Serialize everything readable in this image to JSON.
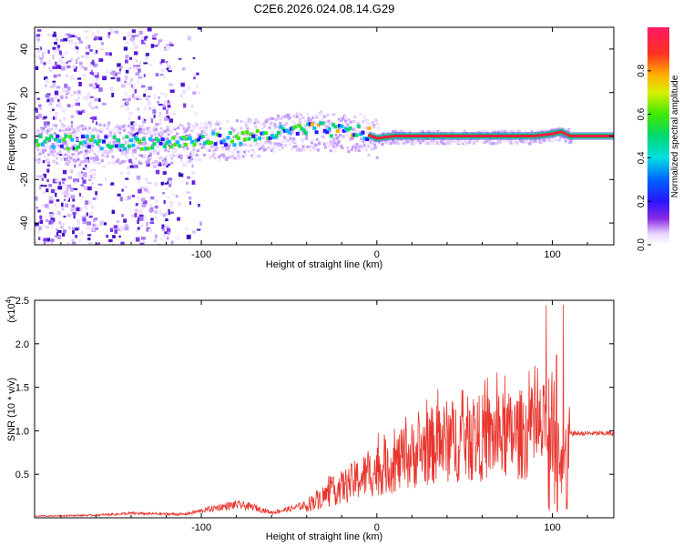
{
  "title": "C2E6.2026.024.08.14.G29",
  "colors": {
    "snr_line": "#e8342c",
    "track_core": "#ff1a44",
    "track_edge": "#00c878",
    "noise": "#6a1ee0"
  },
  "chart_data": [
    {
      "type": "heatmap",
      "title": "C2E6.2026.024.08.14.G29",
      "xlabel": "Height of straight line (km)",
      "ylabel": "Frequency (Hz)",
      "xlim": [
        -195,
        135
      ],
      "ylim": [
        -50,
        50
      ],
      "xticks": [
        "-100",
        "0",
        "100"
      ],
      "yticks": [
        "-40",
        "-20",
        "0",
        "20",
        "40"
      ],
      "colorbar": {
        "label": "Normalized spectral amplitude",
        "range": [
          0.0,
          1.0
        ],
        "ticks": [
          "0.0",
          "0.2",
          "0.4",
          "0.6",
          "0.8"
        ]
      },
      "dominant_track": {
        "x": [
          -195,
          -160,
          -120,
          -80,
          -60,
          -40,
          -30,
          -20,
          -10,
          0,
          10,
          50,
          90,
          100,
          105,
          110,
          135
        ],
        "y": [
          -3,
          -3,
          -3,
          -1,
          1,
          3,
          3,
          2,
          2,
          -1,
          0,
          0,
          0,
          1,
          2,
          0,
          0
        ]
      },
      "grid": false
    },
    {
      "type": "line",
      "xlabel": "Height of straight line (km)",
      "ylabel": "SNR (10 * v/v)",
      "y_multiplier": "(x10",
      "y_multiplier_exp": "4",
      "xlim": [
        -195,
        135
      ],
      "ylim": [
        0,
        2.5
      ],
      "xticks": [
        "-100",
        "0",
        "100"
      ],
      "yticks": [
        "0.5",
        "1.0",
        "1.5",
        "2.0",
        "2.5"
      ],
      "envelope": {
        "x": [
          -195,
          -160,
          -140,
          -110,
          -90,
          -80,
          -70,
          -60,
          -50,
          -40,
          -30,
          -20,
          -10,
          0,
          10,
          20,
          30,
          40,
          60,
          80,
          95,
          100,
          105,
          110,
          135
        ],
        "y": [
          0.02,
          0.03,
          0.05,
          0.04,
          0.12,
          0.15,
          0.12,
          0.06,
          0.1,
          0.15,
          0.25,
          0.35,
          0.45,
          0.55,
          0.62,
          0.72,
          0.82,
          0.88,
          0.92,
          0.95,
          1.0,
          1.0,
          0.6,
          0.97,
          0.97
        ]
      },
      "grid": false
    }
  ]
}
